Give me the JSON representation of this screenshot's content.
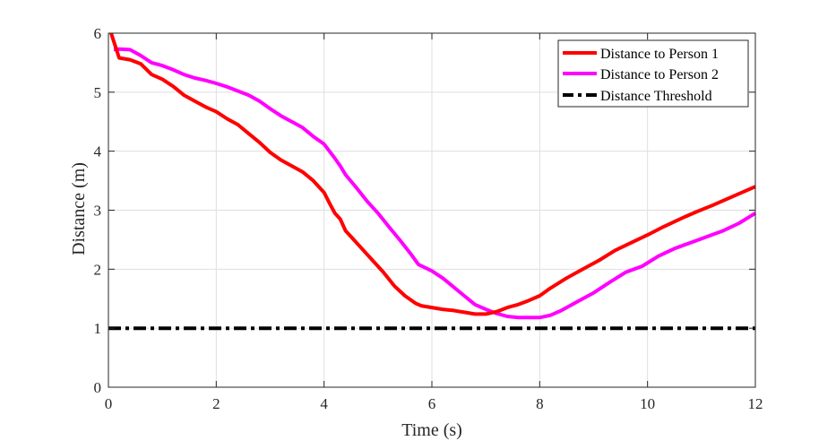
{
  "chart_data": {
    "type": "line",
    "title": "",
    "xlabel": "Time (s)",
    "ylabel": "Distance (m)",
    "xlim": [
      0,
      12
    ],
    "ylim": [
      0,
      6
    ],
    "xticks": [
      0,
      2,
      4,
      6,
      8,
      10,
      12
    ],
    "yticks": [
      0,
      1,
      2,
      3,
      4,
      5,
      6
    ],
    "grid": true,
    "legend_position": "top-right",
    "series": [
      {
        "name": "Distance to Person 1",
        "color": "#ff0000",
        "style": "solid",
        "x": [
          0.05,
          0.2,
          0.4,
          0.6,
          0.8,
          1.0,
          1.2,
          1.4,
          1.6,
          1.8,
          2.0,
          2.2,
          2.4,
          2.6,
          2.8,
          3.0,
          3.2,
          3.4,
          3.6,
          3.8,
          4.0,
          4.1,
          4.2,
          4.3,
          4.4,
          4.5,
          4.7,
          4.9,
          5.1,
          5.3,
          5.5,
          5.7,
          5.8,
          6.0,
          6.2,
          6.4,
          6.6,
          6.8,
          7.0,
          7.2,
          7.4,
          7.6,
          7.8,
          8.0,
          8.2,
          8.5,
          8.8,
          9.1,
          9.4,
          9.7,
          10.0,
          10.3,
          10.6,
          10.9,
          11.2,
          11.5,
          11.8,
          12.0
        ],
        "values": [
          6.0,
          5.58,
          5.55,
          5.48,
          5.3,
          5.22,
          5.1,
          4.95,
          4.85,
          4.75,
          4.67,
          4.55,
          4.45,
          4.3,
          4.15,
          3.98,
          3.85,
          3.75,
          3.65,
          3.5,
          3.3,
          3.12,
          2.95,
          2.85,
          2.65,
          2.55,
          2.35,
          2.15,
          1.95,
          1.72,
          1.55,
          1.42,
          1.38,
          1.35,
          1.32,
          1.3,
          1.27,
          1.24,
          1.24,
          1.28,
          1.35,
          1.4,
          1.47,
          1.55,
          1.68,
          1.85,
          2.0,
          2.15,
          2.32,
          2.45,
          2.58,
          2.72,
          2.85,
          2.97,
          3.08,
          3.2,
          3.32,
          3.4
        ]
      },
      {
        "name": "Distance to Person 2",
        "color": "#ff00ff",
        "style": "solid",
        "x": [
          0.1,
          0.2,
          0.4,
          0.6,
          0.8,
          1.0,
          1.2,
          1.4,
          1.6,
          1.8,
          2.0,
          2.2,
          2.4,
          2.6,
          2.8,
          3.0,
          3.2,
          3.4,
          3.6,
          3.8,
          4.0,
          4.1,
          4.2,
          4.3,
          4.4,
          4.6,
          4.8,
          5.0,
          5.2,
          5.4,
          5.6,
          5.75,
          6.0,
          6.2,
          6.4,
          6.6,
          6.8,
          7.0,
          7.2,
          7.4,
          7.6,
          7.8,
          8.0,
          8.2,
          8.4,
          8.7,
          9.0,
          9.3,
          9.6,
          9.9,
          10.2,
          10.5,
          10.8,
          11.1,
          11.4,
          11.7,
          12.0
        ],
        "values": [
          5.72,
          5.73,
          5.72,
          5.62,
          5.5,
          5.45,
          5.38,
          5.3,
          5.24,
          5.2,
          5.15,
          5.09,
          5.02,
          4.95,
          4.85,
          4.72,
          4.6,
          4.5,
          4.4,
          4.25,
          4.12,
          4.0,
          3.88,
          3.75,
          3.6,
          3.38,
          3.15,
          2.95,
          2.72,
          2.5,
          2.27,
          2.08,
          1.97,
          1.85,
          1.7,
          1.55,
          1.4,
          1.32,
          1.25,
          1.2,
          1.18,
          1.18,
          1.18,
          1.22,
          1.3,
          1.45,
          1.6,
          1.78,
          1.95,
          2.05,
          2.22,
          2.35,
          2.45,
          2.55,
          2.65,
          2.78,
          2.95
        ]
      },
      {
        "name": "Distance Threshold",
        "color": "#000000",
        "style": "dashdot",
        "x": [
          0,
          12
        ],
        "values": [
          1,
          1
        ]
      }
    ]
  }
}
